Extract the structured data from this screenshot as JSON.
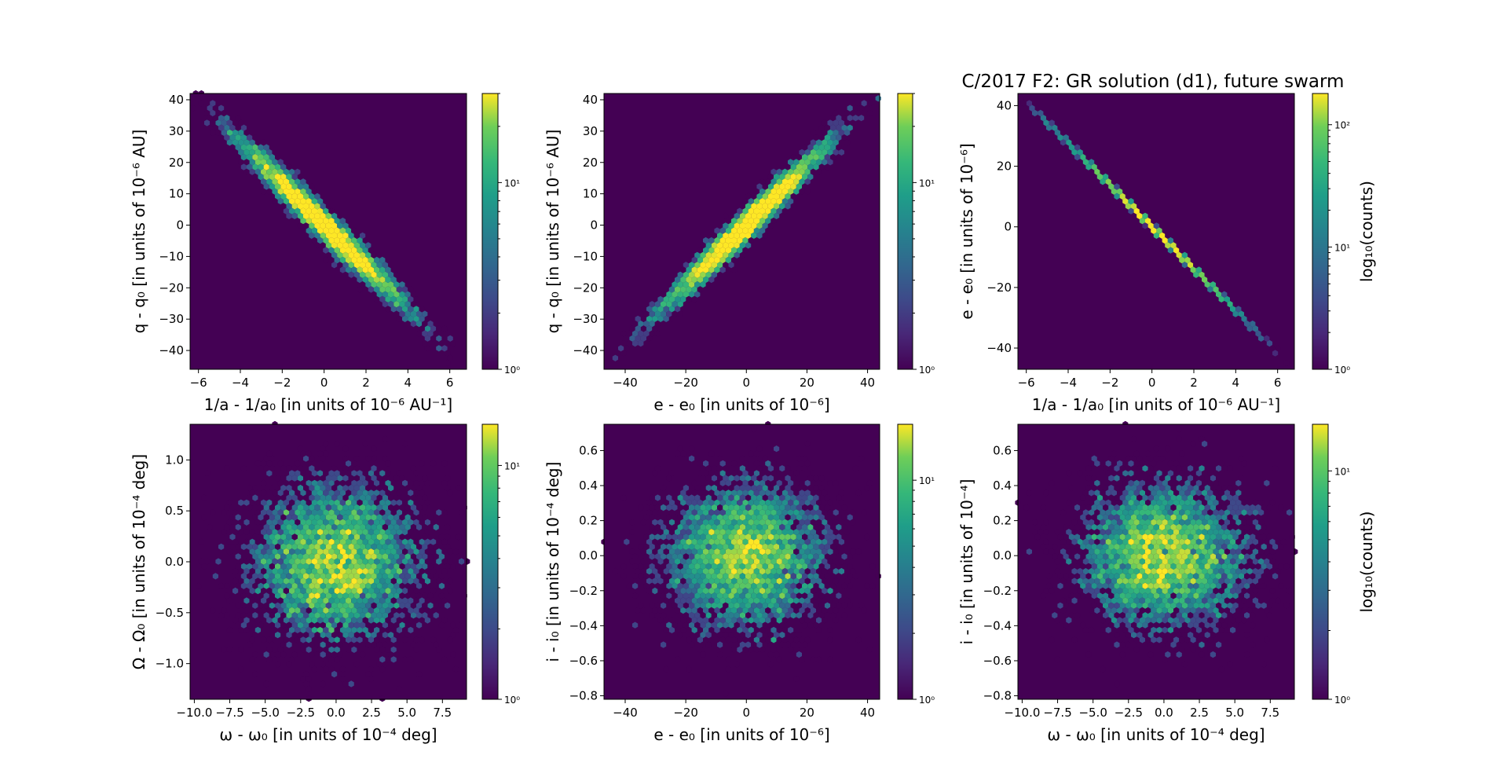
{
  "chart_data": {
    "type": "heatmap",
    "title": "C/2017 F2: GR solution (d1), future swarm",
    "colormap": "viridis",
    "background_color": "#440154",
    "panels": [
      {
        "xlabel": "1/a - 1/a₀ [in units of 10⁻⁶ AU⁻¹]",
        "ylabel": "q - q₀ [in units of 10⁻⁶ AU]",
        "xlim": [
          -6.4,
          6.8
        ],
        "ylim": [
          -46,
          42
        ],
        "xticks": [
          -6,
          -4,
          -2,
          0,
          2,
          4,
          6
        ],
        "xticklabels": [
          "−6",
          "−4",
          "−2",
          "0",
          "2",
          "4",
          "6"
        ],
        "yticks": [
          -40,
          -30,
          -20,
          -10,
          0,
          10,
          20,
          30,
          40
        ],
        "yticklabels": [
          "−40",
          "−30",
          "−20",
          "−10",
          "0",
          "10",
          "20",
          "30",
          "40"
        ],
        "colorbar": {
          "max": 30,
          "ticks": [
            1,
            10
          ],
          "ticklabels": [
            "10⁰",
            "10¹"
          ],
          "label": ""
        },
        "sample_model": {
          "x_sd": 2.0,
          "slope": -6.6,
          "scatter_sd": 2.6,
          "n": 5000
        }
      },
      {
        "xlabel": "e - e₀ [in units of 10⁻⁶]",
        "ylabel": "q - q₀ [in units of 10⁻⁶ AU]",
        "xlim": [
          -47,
          44
        ],
        "ylim": [
          -46,
          42
        ],
        "xticks": [
          -40,
          -20,
          0,
          20,
          40
        ],
        "xticklabels": [
          "−40",
          "−20",
          "0",
          "20",
          "40"
        ],
        "yticks": [
          -40,
          -30,
          -20,
          -10,
          0,
          10,
          20,
          30,
          40
        ],
        "yticklabels": [
          "−40",
          "−30",
          "−20",
          "−10",
          "0",
          "10",
          "20",
          "30",
          "40"
        ],
        "colorbar": {
          "max": 30,
          "ticks": [
            1,
            10
          ],
          "ticklabels": [
            "10⁰",
            "10¹"
          ],
          "label": ""
        },
        "sample_model": {
          "x_sd": 13.5,
          "slope": 0.95,
          "scatter_sd": 2.6,
          "n": 5000
        }
      },
      {
        "xlabel": "1/a - 1/a₀ [in units of 10⁻⁶ AU⁻¹]",
        "ylabel": "e - e₀ [in units of 10⁻⁶]",
        "xlim": [
          -6.4,
          6.8
        ],
        "ylim": [
          -47,
          44
        ],
        "xticks": [
          -6,
          -4,
          -2,
          0,
          2,
          4,
          6
        ],
        "xticklabels": [
          "−6",
          "−4",
          "−2",
          "0",
          "2",
          "4",
          "6"
        ],
        "yticks": [
          -40,
          -20,
          0,
          20,
          40
        ],
        "yticklabels": [
          "−40",
          "−20",
          "0",
          "20",
          "40"
        ],
        "colorbar": {
          "max": 180,
          "ticks": [
            1,
            10,
            100
          ],
          "ticklabels": [
            "10⁰",
            "10¹",
            "10²"
          ],
          "label": "log₁₀(counts)"
        },
        "sample_model": {
          "x_sd": 2.0,
          "slope": -6.9,
          "scatter_sd": 0.25,
          "n": 5000
        }
      },
      {
        "xlabel": "ω - ω₀ [in units of 10⁻⁴ deg]",
        "ylabel": "Ω - Ω₀ [in units of 10⁻⁴ deg]",
        "xlim": [
          -10.3,
          9.2
        ],
        "ylim": [
          -1.35,
          1.35
        ],
        "xticks": [
          -10,
          -7.5,
          -5,
          -2.5,
          0,
          2.5,
          5,
          7.5
        ],
        "xticklabels": [
          "−10.0",
          "−7.5",
          "−5.0",
          "−2.5",
          "0.0",
          "2.5",
          "5.0",
          "7.5"
        ],
        "yticks": [
          -1,
          -0.5,
          0,
          0.5,
          1
        ],
        "yticklabels": [
          "−1.0",
          "−0.5",
          "0.0",
          "0.5",
          "1.0"
        ],
        "colorbar": {
          "max": 15,
          "ticks": [
            1,
            10
          ],
          "ticklabels": [
            "10⁰",
            "10¹"
          ],
          "label": ""
        },
        "sample_model": {
          "x_sd": 3.0,
          "slope": 0,
          "scatter_sd": 0.4,
          "n": 5000
        }
      },
      {
        "xlabel": "e - e₀ [in units of 10⁻⁶]",
        "ylabel": "i - i₀ [in units of 10⁻⁴ deg]",
        "xlim": [
          -47,
          44
        ],
        "ylim": [
          -0.82,
          0.75
        ],
        "xticks": [
          -40,
          -20,
          0,
          20,
          40
        ],
        "xticklabels": [
          "−40",
          "−20",
          "0",
          "20",
          "40"
        ],
        "yticks": [
          -0.8,
          -0.6,
          -0.4,
          -0.2,
          0,
          0.2,
          0.4,
          0.6
        ],
        "yticklabels": [
          "−0.8",
          "−0.6",
          "−0.4",
          "−0.2",
          "0.0",
          "0.2",
          "0.4",
          "0.6"
        ],
        "colorbar": {
          "max": 18,
          "ticks": [
            1,
            10
          ],
          "ticklabels": [
            "10⁰",
            "10¹"
          ],
          "label": ""
        },
        "sample_model": {
          "x_sd": 13.5,
          "slope": 0,
          "scatter_sd": 0.21,
          "n": 5000
        }
      },
      {
        "xlabel": "ω - ω₀ [in units of 10⁻⁴ deg]",
        "ylabel": "i - i₀ [in units of 10⁻⁴]",
        "xlim": [
          -10.3,
          9.2
        ],
        "ylim": [
          -0.82,
          0.75
        ],
        "xticks": [
          -10,
          -7.5,
          -5,
          -2.5,
          0,
          2.5,
          5,
          7.5
        ],
        "xticklabels": [
          "−10.0",
          "−7.5",
          "−5.0",
          "−2.5",
          "0.0",
          "2.5",
          "5.0",
          "7.5"
        ],
        "yticks": [
          -0.8,
          -0.6,
          -0.4,
          -0.2,
          0,
          0.2,
          0.4,
          0.6
        ],
        "yticklabels": [
          "−0.8",
          "−0.6",
          "−0.4",
          "−0.2",
          "0.0",
          "0.2",
          "0.4",
          "0.6"
        ],
        "colorbar": {
          "max": 16,
          "ticks": [
            1,
            10
          ],
          "ticklabels": [
            "10⁰",
            "10¹"
          ],
          "label": "log₁₀(counts)"
        },
        "sample_model": {
          "x_sd": 3.0,
          "slope": 0,
          "scatter_sd": 0.21,
          "n": 5000
        }
      }
    ]
  }
}
